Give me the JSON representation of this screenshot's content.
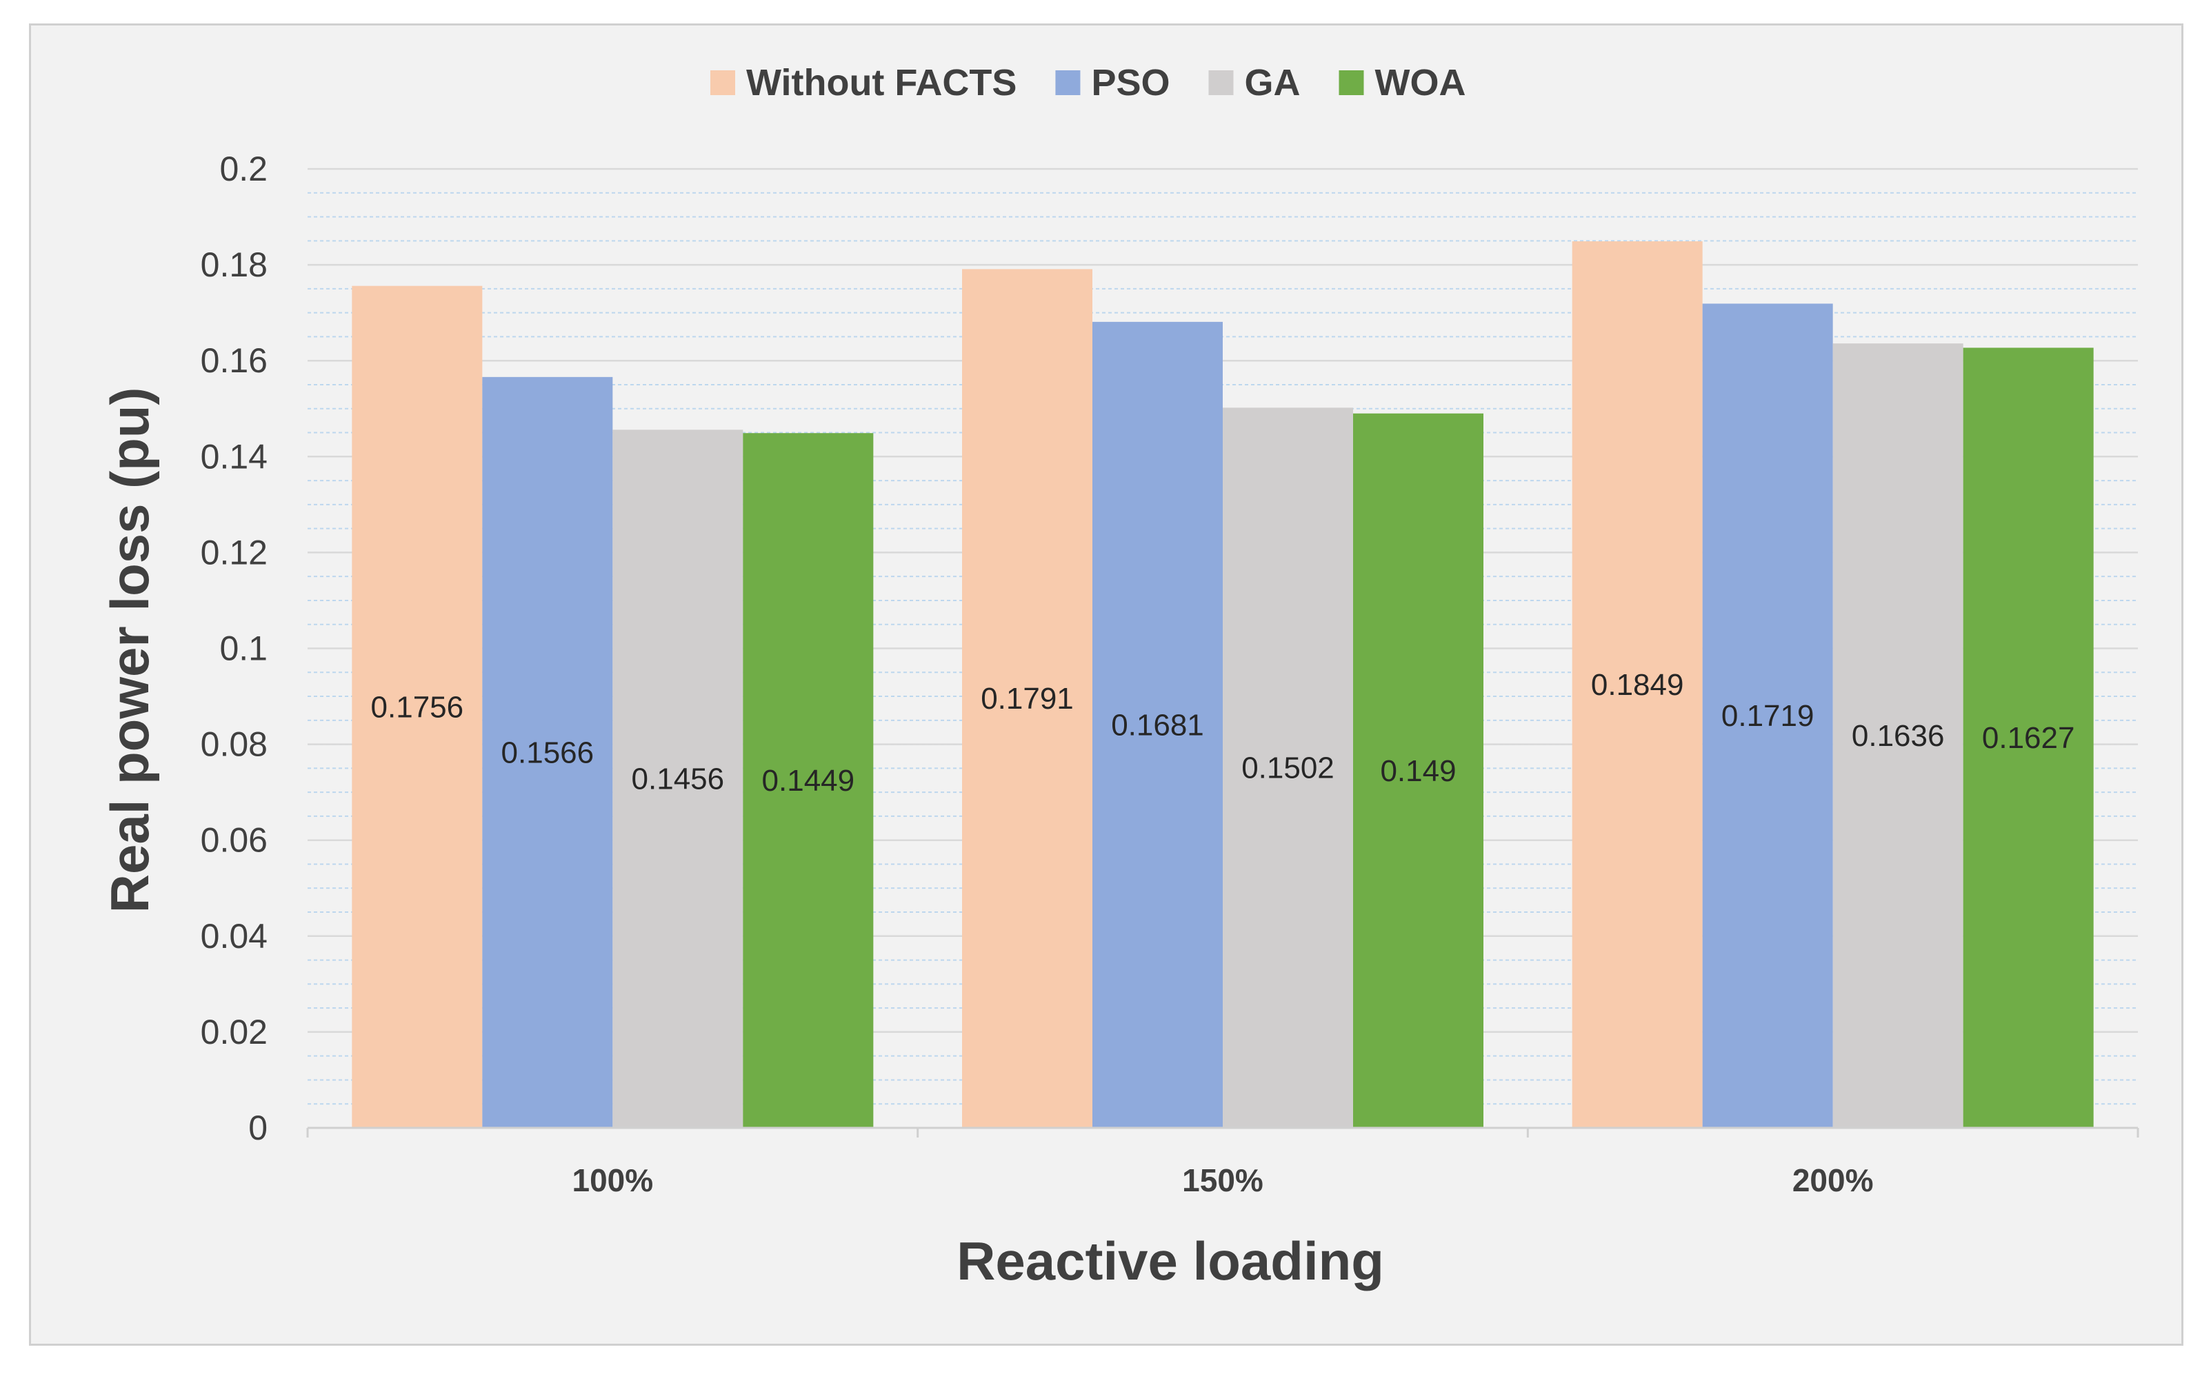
{
  "chart_data": {
    "type": "bar",
    "categories": [
      "100%",
      "150%",
      "200%"
    ],
    "series": [
      {
        "name": "Without FACTS",
        "color": "#f8cbad",
        "values": [
          0.1756,
          0.1791,
          0.1849
        ],
        "labels": [
          "0.1756",
          "0.1791",
          "0.1849"
        ]
      },
      {
        "name": "PSO",
        "color": "#8faadc",
        "values": [
          0.1566,
          0.1681,
          0.1719
        ],
        "labels": [
          "0.1566",
          "0.1681",
          "0.1719"
        ]
      },
      {
        "name": "GA",
        "color": "#d0cece",
        "values": [
          0.1456,
          0.1502,
          0.1636
        ],
        "labels": [
          "0.1456",
          "0.1502",
          "0.1636"
        ]
      },
      {
        "name": "WOA",
        "color": "#70ad47",
        "values": [
          0.1449,
          0.149,
          0.1627
        ],
        "labels": [
          "0.1449",
          "0.149",
          "0.1627"
        ]
      }
    ],
    "yticks": [
      0,
      0.02,
      0.04,
      0.06,
      0.08,
      0.1,
      0.12,
      0.14,
      0.16,
      0.18,
      0.2
    ],
    "ytick_labels": [
      "0",
      "0.02",
      "0.04",
      "0.06",
      "0.08",
      "0.1",
      "0.12",
      "0.14",
      "0.16",
      "0.18",
      "0.2"
    ],
    "ylim": [
      0,
      0.2
    ],
    "minor_grid_step": 0.005,
    "xlabel": "Reactive loading",
    "ylabel": "Real power loss (pu)",
    "legend_position": "top-center",
    "grid": true
  }
}
